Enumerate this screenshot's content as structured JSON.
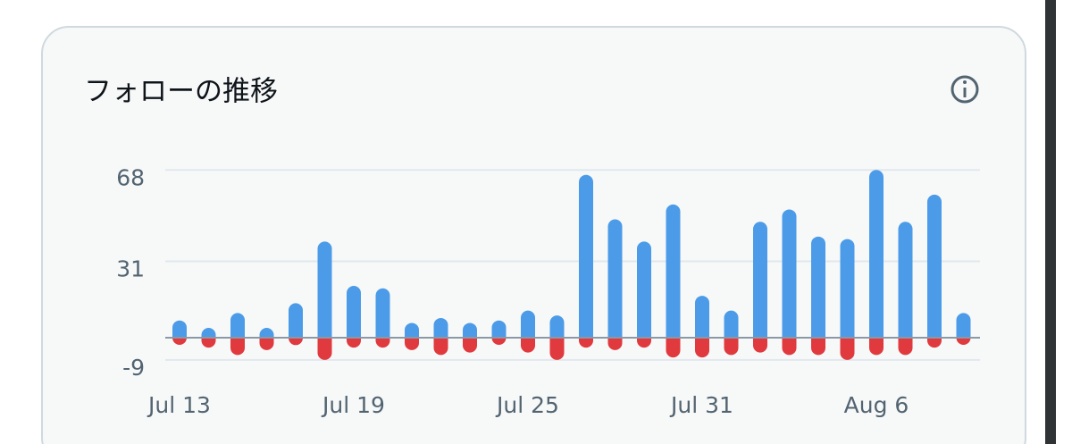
{
  "chart_data": {
    "type": "bar",
    "title": "フォローの推移",
    "categories": [
      "Jul 13",
      null,
      null,
      null,
      null,
      null,
      "Jul 19",
      null,
      null,
      null,
      null,
      null,
      "Jul 25",
      null,
      null,
      null,
      null,
      null,
      "Jul 31",
      null,
      null,
      null,
      null,
      null,
      "Aug 6",
      null,
      null,
      null
    ],
    "series": [
      {
        "color": "#4c9be8",
        "values": [
          7,
          4,
          10,
          4,
          14,
          39,
          21,
          20,
          6,
          8,
          6,
          7,
          11,
          9,
          66,
          48,
          39,
          54,
          17,
          11,
          47,
          52,
          41,
          40,
          68,
          47,
          58,
          10
        ]
      },
      {
        "color": "#e0393e",
        "values": [
          -2,
          -4,
          -7,
          -5,
          -3,
          -9,
          -4,
          -4,
          -5,
          -7,
          -6,
          -2,
          -6,
          -9,
          -4,
          -5,
          -4,
          -8,
          -8,
          -7,
          -6,
          -7,
          -7,
          -9,
          -7,
          -7,
          -4,
          -1
        ]
      }
    ],
    "ylim": [
      -11,
      71
    ],
    "yticks": [
      -9,
      31,
      68
    ],
    "grid": true
  }
}
